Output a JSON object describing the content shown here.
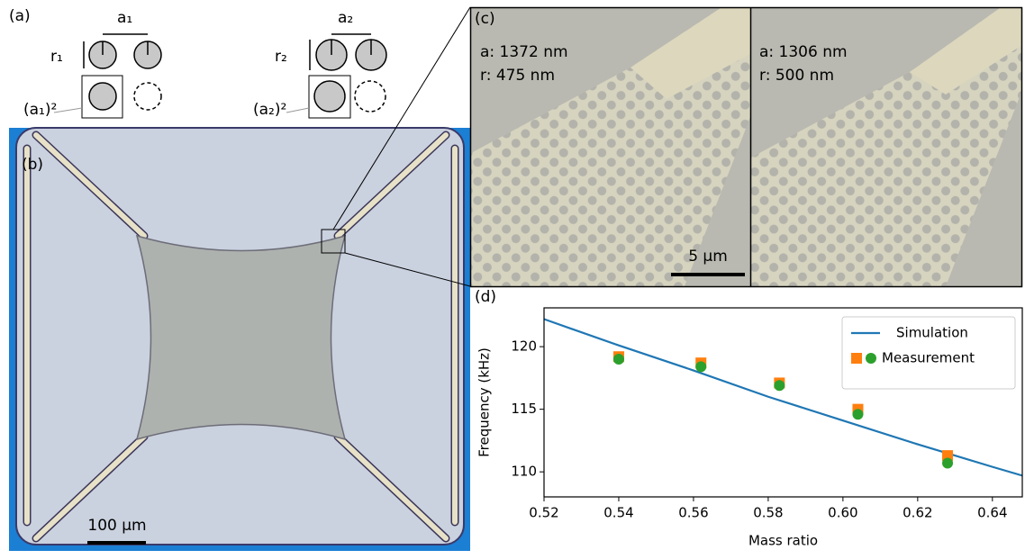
{
  "panels": {
    "a": {
      "label": "(a)",
      "a1": "a₁",
      "r1": "r₁",
      "area1": "(a₁)²",
      "a2": "a₂",
      "r2": "r₂",
      "area2": "(a₂)²"
    },
    "b": {
      "label": "(b)",
      "scale": "100 µm"
    },
    "c": {
      "label": "(c)",
      "left": [
        "a: 1372 nm",
        "r: 475 nm"
      ],
      "right": [
        "a: 1306 nm",
        "r: 500 nm"
      ],
      "scale": "5 µm"
    },
    "d": {
      "label": "(d)"
    }
  },
  "chart_data": {
    "type": "line",
    "xlabel": "Mass ratio",
    "ylabel": "Frequency (kHz)",
    "xlim": [
      0.52,
      0.648
    ],
    "ylim": [
      108,
      123.1
    ],
    "xticks": [
      0.52,
      0.54,
      0.56,
      0.58,
      {
        "value": 0.6,
        "label": "0.60"
      },
      0.62,
      0.64
    ],
    "yticks": [
      110,
      115,
      120
    ],
    "legend": "upper right",
    "series": [
      {
        "name": "Simulation",
        "color": "#1f77b4",
        "marker": "line",
        "x": [
          0.52,
          0.54,
          0.56,
          0.58,
          0.6,
          0.62,
          0.64,
          0.648
        ],
        "values": [
          122.2,
          120.1,
          118.1,
          116.0,
          114.1,
          112.2,
          110.4,
          109.7
        ]
      },
      {
        "name": "Measurement",
        "color": "#ff7f0e",
        "marker": "square",
        "x": [
          0.54,
          0.562,
          0.583,
          0.604,
          0.628
        ],
        "values": [
          119.2,
          118.7,
          117.1,
          115.0,
          111.3
        ]
      },
      {
        "color": "#2ca02c",
        "marker": "circle",
        "x": [
          0.54,
          0.562,
          0.583,
          0.604,
          0.628
        ],
        "values": [
          119.0,
          118.4,
          116.9,
          114.6,
          110.7
        ]
      }
    ]
  }
}
